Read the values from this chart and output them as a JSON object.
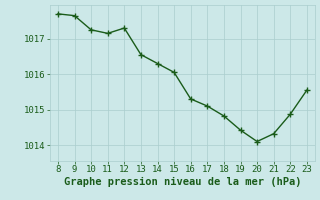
{
  "x": [
    8,
    9,
    10,
    11,
    12,
    13,
    14,
    15,
    16,
    17,
    18,
    19,
    20,
    21,
    22,
    23
  ],
  "y": [
    1017.7,
    1017.65,
    1017.25,
    1017.15,
    1017.3,
    1016.55,
    1016.3,
    1016.05,
    1015.3,
    1015.1,
    1014.82,
    1014.42,
    1014.1,
    1014.32,
    1014.87,
    1015.55
  ],
  "line_color": "#1a5c1a",
  "marker": "+",
  "bg_color": "#cce8e8",
  "grid_color": "#aacece",
  "xlabel": "Graphe pression niveau de la mer (hPa)",
  "xlabel_color": "#1a5c1a",
  "xlabel_fontsize": 7.5,
  "ylabel_ticks": [
    1014,
    1015,
    1016,
    1017
  ],
  "xticks": [
    8,
    9,
    10,
    11,
    12,
    13,
    14,
    15,
    16,
    17,
    18,
    19,
    20,
    21,
    22,
    23
  ],
  "ylim": [
    1013.55,
    1017.95
  ],
  "xlim": [
    7.5,
    23.5
  ],
  "tick_fontsize": 6.5,
  "linewidth": 1.0,
  "markersize": 4,
  "markeredgewidth": 1.0
}
